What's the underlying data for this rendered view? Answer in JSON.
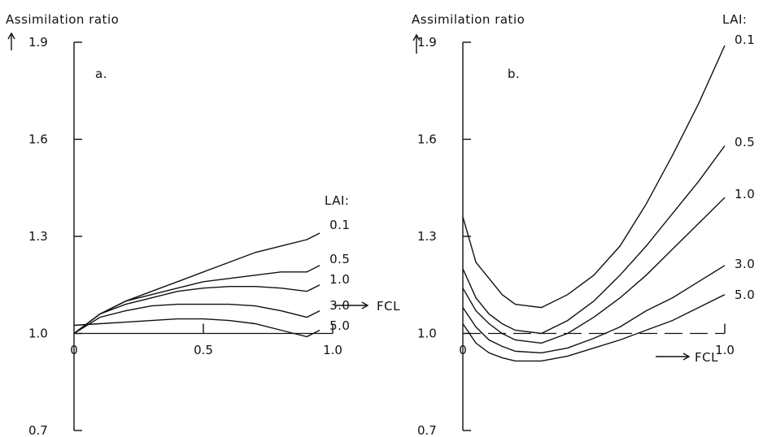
{
  "chart_data": [
    {
      "type": "line",
      "panel_label": "a.",
      "ylabel": "Assimilation ratio",
      "xlabel": "FCL",
      "legend_title": "LAI:",
      "ylim": [
        0.7,
        1.9
      ],
      "xlim": [
        0,
        1.0
      ],
      "yticks": [
        0.7,
        1.0,
        1.3,
        1.6,
        1.9
      ],
      "ytick_labels": [
        "0.7",
        "1.0",
        "1.3",
        "1.6",
        "1.9"
      ],
      "xticks": [
        0,
        0.5,
        1.0
      ],
      "xtick_labels": [
        "0",
        "0.5",
        "1.0"
      ],
      "reference_line": {
        "y": 1.0,
        "style": "solid"
      },
      "series": [
        {
          "name": "0.1",
          "x": [
            0,
            0.1,
            0.2,
            0.3,
            0.4,
            0.5,
            0.6,
            0.7,
            0.8,
            0.9,
            0.95
          ],
          "y": [
            1.0,
            1.06,
            1.1,
            1.13,
            1.16,
            1.19,
            1.22,
            1.25,
            1.27,
            1.29,
            1.31
          ]
        },
        {
          "name": "0.5",
          "x": [
            0,
            0.1,
            0.2,
            0.3,
            0.4,
            0.5,
            0.6,
            0.7,
            0.8,
            0.9,
            0.95
          ],
          "y": [
            1.0,
            1.06,
            1.1,
            1.12,
            1.14,
            1.16,
            1.17,
            1.18,
            1.19,
            1.19,
            1.21
          ]
        },
        {
          "name": "1.0",
          "x": [
            0,
            0.1,
            0.2,
            0.3,
            0.4,
            0.5,
            0.6,
            0.7,
            0.8,
            0.9,
            0.95
          ],
          "y": [
            1.0,
            1.06,
            1.09,
            1.11,
            1.13,
            1.14,
            1.145,
            1.145,
            1.14,
            1.13,
            1.15
          ]
        },
        {
          "name": "3.0",
          "x": [
            0,
            0.1,
            0.2,
            0.3,
            0.4,
            0.5,
            0.6,
            0.7,
            0.8,
            0.9,
            0.95
          ],
          "y": [
            1.0,
            1.05,
            1.07,
            1.085,
            1.09,
            1.09,
            1.09,
            1.085,
            1.07,
            1.05,
            1.07
          ]
        },
        {
          "name": "5.0",
          "x": [
            0,
            0.1,
            0.2,
            0.3,
            0.4,
            0.5,
            0.6,
            0.7,
            0.8,
            0.9,
            0.95
          ],
          "y": [
            1.025,
            1.03,
            1.035,
            1.04,
            1.045,
            1.045,
            1.04,
            1.03,
            1.01,
            0.99,
            1.01
          ]
        }
      ]
    },
    {
      "type": "line",
      "panel_label": "b.",
      "ylabel": "Assimilation ratio",
      "xlabel": "FCL",
      "legend_title": "LAI:",
      "ylim": [
        0.7,
        1.9
      ],
      "xlim": [
        0,
        1.0
      ],
      "yticks": [
        0.7,
        1.0,
        1.3,
        1.6,
        1.9
      ],
      "ytick_labels": [
        "0.7",
        "1.0",
        "1.3",
        "1.6",
        "1.9"
      ],
      "xticks": [
        0,
        1.0
      ],
      "xtick_labels": [
        "0",
        "1.0"
      ],
      "reference_line": {
        "y": 1.0,
        "style": "dashed"
      },
      "series": [
        {
          "name": "0.1",
          "x": [
            0,
            0.05,
            0.1,
            0.15,
            0.2,
            0.3,
            0.4,
            0.5,
            0.6,
            0.7,
            0.8,
            0.9,
            1.0
          ],
          "y": [
            1.36,
            1.22,
            1.17,
            1.12,
            1.09,
            1.08,
            1.12,
            1.18,
            1.27,
            1.4,
            1.55,
            1.71,
            1.89
          ]
        },
        {
          "name": "0.5",
          "x": [
            0,
            0.05,
            0.1,
            0.15,
            0.2,
            0.3,
            0.4,
            0.5,
            0.6,
            0.7,
            0.8,
            0.9,
            1.0
          ],
          "y": [
            1.2,
            1.11,
            1.06,
            1.03,
            1.01,
            1.0,
            1.04,
            1.1,
            1.18,
            1.27,
            1.37,
            1.47,
            1.58
          ]
        },
        {
          "name": "1.0",
          "x": [
            0,
            0.05,
            0.1,
            0.15,
            0.2,
            0.3,
            0.4,
            0.5,
            0.6,
            0.7,
            0.8,
            0.9,
            1.0
          ],
          "y": [
            1.14,
            1.07,
            1.03,
            1.0,
            0.98,
            0.97,
            1.0,
            1.05,
            1.11,
            1.18,
            1.26,
            1.34,
            1.42
          ]
        },
        {
          "name": "3.0",
          "x": [
            0,
            0.05,
            0.1,
            0.15,
            0.2,
            0.3,
            0.4,
            0.5,
            0.6,
            0.7,
            0.8,
            0.9,
            1.0
          ],
          "y": [
            1.08,
            1.02,
            0.98,
            0.96,
            0.945,
            0.94,
            0.955,
            0.985,
            1.02,
            1.07,
            1.11,
            1.16,
            1.21
          ]
        },
        {
          "name": "5.0",
          "x": [
            0,
            0.05,
            0.1,
            0.15,
            0.2,
            0.3,
            0.4,
            0.5,
            0.6,
            0.7,
            0.8,
            0.9,
            1.0
          ],
          "y": [
            1.03,
            0.97,
            0.94,
            0.925,
            0.915,
            0.915,
            0.93,
            0.955,
            0.98,
            1.01,
            1.04,
            1.08,
            1.12
          ]
        }
      ]
    }
  ]
}
